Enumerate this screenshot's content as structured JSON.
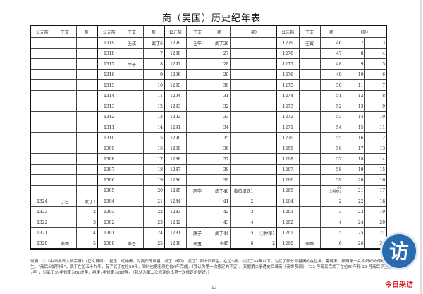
{
  "title": "商（吴国）历史纪年表",
  "headers": [
    "公元前",
    "干支",
    "商",
    "公元前",
    "干支",
    "商",
    "公元前",
    "干支",
    "商",
    "（吴）",
    "公元前",
    "干支",
    "商",
    "（吴）"
  ],
  "rows": [
    [
      "",
      "",
      "",
      "1319",
      "壬戌",
      "武丁6",
      "1299",
      "壬午",
      "武丁26",
      "",
      "",
      "1279",
      "壬寅",
      "46",
      "7",
      "3"
    ],
    [
      "",
      "",
      "",
      "1318",
      "",
      "7",
      "1298",
      "",
      "27",
      "",
      "",
      "1278",
      "",
      "47",
      "8",
      "4"
    ],
    [
      "",
      "",
      "",
      "1317",
      "甲子",
      "8",
      "1297",
      "",
      "28",
      "",
      "",
      "1277",
      "",
      "48",
      "9",
      "5"
    ],
    [
      "",
      "",
      "",
      "1316",
      "",
      "9",
      "1296",
      "",
      "29",
      "",
      "",
      "1276",
      "",
      "49",
      "10",
      "6"
    ],
    [
      "",
      "",
      "",
      "1315",
      "",
      "10",
      "1295",
      "",
      "30",
      "",
      "",
      "1275",
      "",
      "50",
      "11",
      "7"
    ],
    [
      "",
      "",
      "",
      "1314",
      "",
      "11",
      "1294",
      "",
      "31",
      "",
      "",
      "1274",
      "",
      "51",
      "12",
      "8"
    ],
    [
      "",
      "",
      "",
      "1313",
      "",
      "12",
      "1293",
      "",
      "32",
      "",
      "",
      "1273",
      "",
      "52",
      "13",
      "9"
    ],
    [
      "",
      "",
      "",
      "1312",
      "",
      "13",
      "1292",
      "",
      "33",
      "",
      "",
      "1272",
      "",
      "53",
      "14",
      "10"
    ],
    [
      "",
      "",
      "",
      "1311",
      "",
      "14",
      "1291",
      "",
      "34",
      "",
      "",
      "1271",
      "",
      "54",
      "15",
      "11"
    ],
    [
      "",
      "",
      "",
      "1310",
      "",
      "15",
      "1290",
      "",
      "35",
      "",
      "",
      "1270",
      "",
      "55",
      "16",
      "12"
    ],
    [
      "",
      "",
      "",
      "1309",
      "",
      "16",
      "1289",
      "",
      "36",
      "",
      "",
      "1269",
      "",
      "56",
      "17",
      "13"
    ],
    [
      "",
      "",
      "",
      "1308",
      "",
      "17",
      "1288",
      "",
      "37",
      "",
      "",
      "1268",
      "",
      "57",
      "18",
      "14"
    ],
    [
      "",
      "",
      "",
      "1307",
      "",
      "18",
      "1287",
      "",
      "38",
      "",
      "",
      "1267",
      "",
      "58",
      "19",
      "15"
    ],
    [
      "",
      "",
      "",
      "1306",
      "",
      "19",
      "1286",
      "",
      "39",
      "",
      "",
      "1266",
      "",
      "59",
      "20",
      "16"
    ],
    [
      "",
      "",
      "",
      "1305",
      "",
      "20",
      "1285",
      "丙申",
      "武丁40",
      "泰伯诞辰1",
      "",
      "1265",
      "",
      "60\n③祖庚1",
      "21",
      "17"
    ],
    [
      "1324",
      "丁巳",
      "武丁1",
      "1304",
      "",
      "21",
      "1284",
      "",
      "41",
      "2",
      "",
      "1264",
      "",
      "2",
      "22",
      "18"
    ],
    [
      "1323",
      "",
      "2",
      "1303",
      "",
      "22",
      "1283",
      "",
      "42",
      "3",
      "",
      "1263",
      "",
      "3",
      "23",
      "19"
    ],
    [
      "1322",
      "",
      "3",
      "1302",
      "",
      "23",
      "1282",
      "",
      "43",
      "4",
      "",
      "1262",
      "",
      "4",
      "24",
      "20"
    ],
    [
      "1321",
      "",
      "4",
      "1301",
      "",
      "24",
      "1281",
      "庚子",
      "武丁44",
      "5",
      "①仲雍1",
      "1261",
      "",
      "5",
      "25",
      "21"
    ],
    [
      "1320",
      "辛酉",
      "5",
      "1300",
      "辛巳",
      "25",
      "1280",
      "辛丑",
      "②45",
      "6",
      "2",
      "1260",
      "辛酉",
      "6",
      "26",
      "22"
    ]
  ],
  "note": "说明：①《中华吴氏大统宗谱》（正文首面）：君王二代仲雍，为吴氏传世祖，戊丁（修为：武丁）四十四年生，在位5年。②武丁44年以下，为武丁部分和祖庚的在位年，需待考。殷商第一女将妇好的传奇一生，“商后妇好列传”，武丁在位五十九年，有了武丁在位59年，同时也把祖庚在位9年完成。（我认为第一次修定的不妥）。又据第二册通史目录商《商世系表》：“22 号商高宗武丁在位59年和 23 号商后平王祖庚7年”，对武丁59年修定为60虚年，祖庚7年修定为8虚年。（我认为第二次修定的比第一次修定的更好。）",
  "page_number": "13",
  "logo": {
    "glyph": "访",
    "text": "今日采访",
    "colors": {
      "circle": "#2a6bb0",
      "text": "#e02020"
    }
  }
}
